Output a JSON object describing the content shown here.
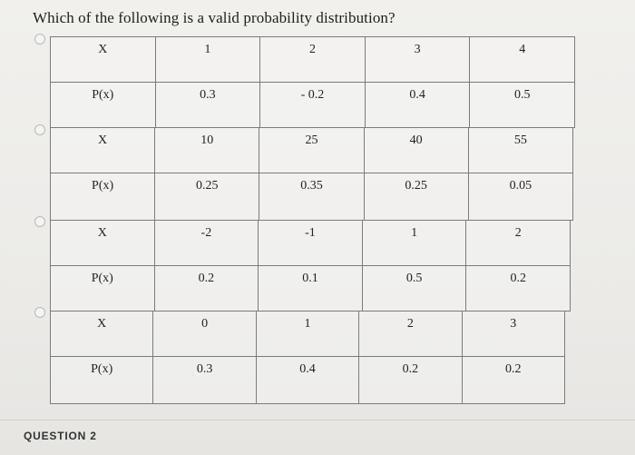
{
  "question": {
    "text": "Which of the following is a valid probability distribution?"
  },
  "options": [
    {
      "x_label": "X",
      "p_label": "P(x)",
      "x_values": [
        "1",
        "2",
        "3",
        "4"
      ],
      "p_values": [
        "0.3",
        "- 0.2",
        "0.4",
        "0.5"
      ]
    },
    {
      "x_label": "X",
      "p_label": "P(x)",
      "x_values": [
        "10",
        "25",
        "40",
        "55"
      ],
      "p_values": [
        "0.25",
        "0.35",
        "0.25",
        "0.05"
      ]
    },
    {
      "x_label": "X",
      "p_label": "P(x)",
      "x_values": [
        "-2",
        "-1",
        "1",
        "2"
      ],
      "p_values": [
        "0.2",
        "0.1",
        "0.5",
        "0.2"
      ]
    },
    {
      "x_label": "X",
      "p_label": "P(x)",
      "x_values": [
        "0",
        "1",
        "2",
        "3"
      ],
      "p_values": [
        "0.3",
        "0.4",
        "0.2",
        "0.2"
      ]
    }
  ],
  "footer": {
    "section_label": "QUESTION 2"
  }
}
